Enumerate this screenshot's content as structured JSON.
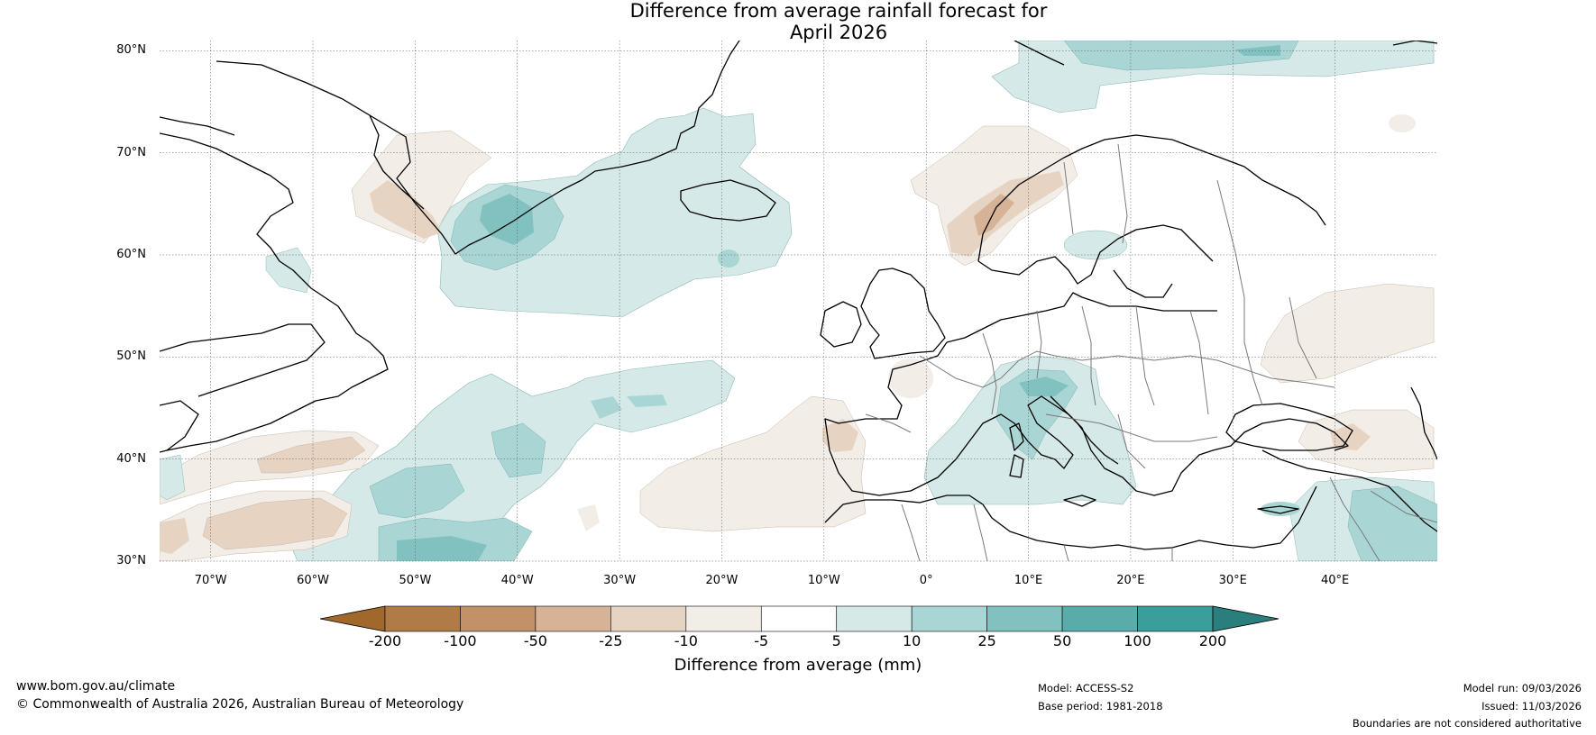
{
  "title": {
    "line1": "Difference from average rainfall forecast for",
    "line2": "April 2026"
  },
  "map": {
    "lat_labels": [
      "80°N",
      "70°N",
      "60°N",
      "50°N",
      "40°N",
      "30°N"
    ],
    "lon_labels": [
      "70°W",
      "60°W",
      "50°W",
      "40°W",
      "30°W",
      "20°W",
      "10°W",
      "0°",
      "10°E",
      "20°E",
      "30°E",
      "40°E"
    ],
    "lat_range": [
      30,
      81
    ],
    "lon_range": [
      -75,
      50
    ]
  },
  "colorbar": {
    "ticks": [
      "-200",
      "-100",
      "-50",
      "-25",
      "-10",
      "-5",
      "5",
      "10",
      "25",
      "50",
      "100",
      "200"
    ],
    "colors": [
      "#a0692b",
      "#b07b46",
      "#c29167",
      "#d6b397",
      "#e6d3c2",
      "#f3ede7",
      "#ffffff",
      "#d4e9e8",
      "#a9d6d4",
      "#81c2c0",
      "#5aacab",
      "#399e9c",
      "#2a7f7d"
    ],
    "label": "Difference from average (mm)"
  },
  "footer": {
    "website": "www.bom.gov.au/climate",
    "copyright": "© Commonwealth of Australia 2026, Australian Bureau of Meteorology",
    "model": "Model: ACCESS-S2",
    "base_period": "Base period: 1981-2018",
    "model_run": "Model run: 09/03/2026",
    "issued": "Issued: 11/03/2026",
    "disclaimer": "Boundaries are not considered authoritative"
  }
}
